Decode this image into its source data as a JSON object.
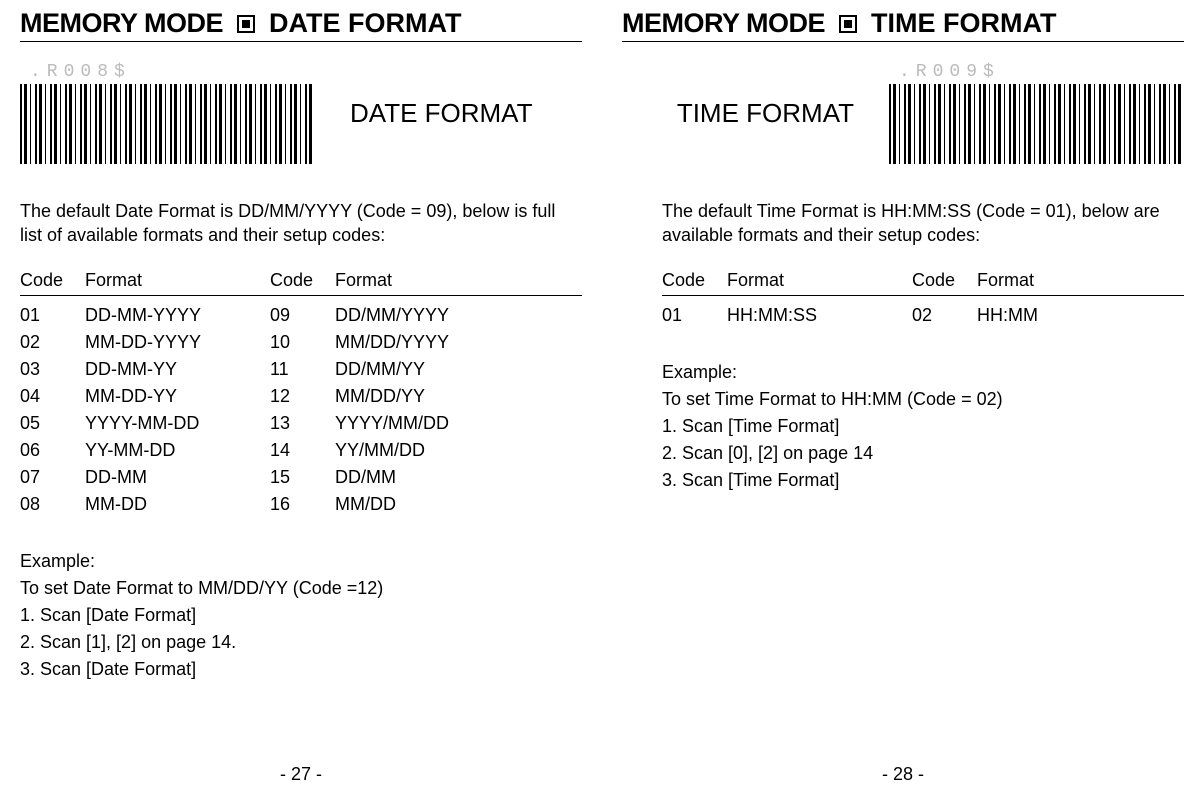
{
  "left": {
    "header_main": "MEMORY MODE",
    "header_sub": "DATE FORMAT",
    "barcode_code": ".R008$",
    "barcode_label": "DATE FORMAT",
    "intro": "The default Date Format is DD/MM/YYYY (Code = 09), below is full list of available formats and their setup codes:",
    "col1": "Code",
    "col2": "Format",
    "col3": "Code",
    "col4": "Format",
    "rows": [
      {
        "a": "01",
        "b": "DD-MM-YYYY",
        "c": "09",
        "d": "DD/MM/YYYY"
      },
      {
        "a": "02",
        "b": "MM-DD-YYYY",
        "c": "10",
        "d": "MM/DD/YYYY"
      },
      {
        "a": "03",
        "b": "DD-MM-YY",
        "c": "11",
        "d": "DD/MM/YY"
      },
      {
        "a": "04",
        "b": "MM-DD-YY",
        "c": "12",
        "d": "MM/DD/YY"
      },
      {
        "a": "05",
        "b": "YYYY-MM-DD",
        "c": "13",
        "d": "YYYY/MM/DD"
      },
      {
        "a": "06",
        "b": "YY-MM-DD",
        "c": "14",
        "d": "YY/MM/DD"
      },
      {
        "a": "07",
        "b": "DD-MM",
        "c": "15",
        "d": "DD/MM"
      },
      {
        "a": "08",
        "b": "MM-DD",
        "c": "16",
        "d": "MM/DD"
      }
    ],
    "ex_title": "Example:",
    "ex_l1": "To set Date Format to  MM/DD/YY (Code =12)",
    "ex_s1a": "1. Scan ",
    "ex_s1b": "[Date Format]",
    "ex_s2": "2. Scan [1], [2] on page 14.",
    "ex_s3a": "3. Scan ",
    "ex_s3b": "[Date Format]",
    "pagenum": "- 27 -"
  },
  "right": {
    "header_main": "MEMORY MODE",
    "header_sub": "TIME FORMAT",
    "barcode_code": ".R009$",
    "barcode_label": "TIME FORMAT",
    "intro": "The default Time Format is HH:MM:SS (Code = 01), below are available formats and their setup codes:",
    "col1": "Code",
    "col2": "Format",
    "col3": "Code",
    "col4": "Format",
    "rows": [
      {
        "a": "01",
        "b": "HH:MM:SS",
        "c": "02",
        "d": "HH:MM"
      }
    ],
    "ex_title": "Example:",
    "ex_l1": "To set Time Format to HH:MM (Code = 02)",
    "ex_s1a": "1. Scan ",
    "ex_s1b": "[Time Format]",
    "ex_s2": "2. Scan [0], [2] on page 14",
    "ex_s3a": "3. Scan ",
    "ex_s3b": "[Time Format]",
    "pagenum": "- 28 -"
  }
}
